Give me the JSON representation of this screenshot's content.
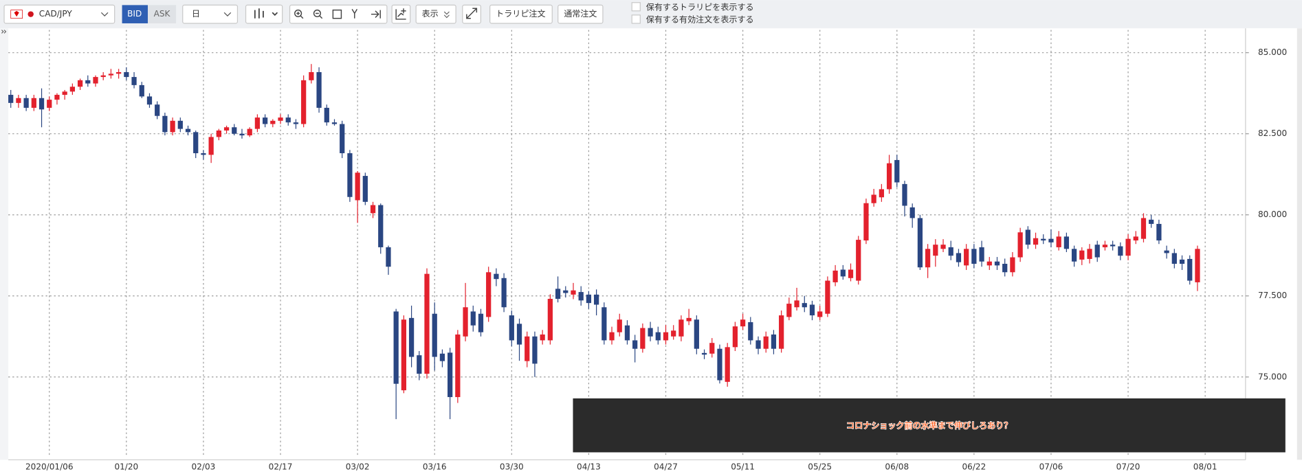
{
  "toolbar": {
    "symbol": "CAD/JPY",
    "bid": "BID",
    "ask": "ASK",
    "period": "日",
    "display": "表示",
    "trap_order": "トラリピ注文",
    "normal_order": "通常注文",
    "check1": "保有するトラリピを表示する",
    "check2": "保有する有効注文を表示する"
  },
  "chart_data": {
    "type": "candlestick",
    "annotation": "コロナショック前の水準まで伸びしろあり？",
    "categories": [
      null,
      null,
      null,
      null,
      null,
      "2020/01/06",
      null,
      null,
      null,
      null,
      null,
      null,
      null,
      null,
      null,
      "01/20",
      null,
      null,
      null,
      null,
      null,
      null,
      null,
      null,
      null,
      "02/03",
      null,
      null,
      null,
      null,
      null,
      null,
      null,
      null,
      null,
      "02/17",
      null,
      null,
      null,
      null,
      null,
      null,
      null,
      null,
      null,
      "03/02",
      null,
      null,
      null,
      null,
      null,
      null,
      null,
      null,
      null,
      "03/16",
      null,
      null,
      null,
      null,
      null,
      null,
      null,
      null,
      null,
      "03/30",
      null,
      null,
      null,
      null,
      null,
      null,
      null,
      null,
      null,
      "04/13",
      null,
      null,
      null,
      null,
      null,
      null,
      null,
      null,
      null,
      "04/27",
      null,
      null,
      null,
      null,
      null,
      null,
      null,
      null,
      null,
      "05/11",
      null,
      null,
      null,
      null,
      null,
      null,
      null,
      null,
      null,
      "05/25",
      null,
      null,
      null,
      null,
      null,
      null,
      null,
      null,
      null,
      "06/08",
      null,
      null,
      null,
      null,
      null,
      null,
      null,
      null,
      null,
      "06/22",
      null,
      null,
      null,
      null,
      null,
      null,
      null,
      null,
      null,
      "07/06",
      null,
      null,
      null,
      null,
      null,
      null,
      null,
      null,
      null,
      "07/20",
      null,
      null,
      null,
      null,
      null,
      null,
      null,
      null,
      null,
      "08/01"
    ],
    "open": [
      83.7,
      83.45,
      83.6,
      83.3,
      83.6,
      83.3,
      83.55,
      83.7,
      83.8,
      83.95,
      84.15,
      84.05,
      84.25,
      84.3,
      84.35,
      84.4,
      84.25,
      84.0,
      83.65,
      83.4,
      83.05,
      82.55,
      82.9,
      82.65,
      82.55,
      81.9,
      81.85,
      82.4,
      82.6,
      82.7,
      82.5,
      82.45,
      82.65,
      83.0,
      82.8,
      82.9,
      83.0,
      82.85,
      82.8,
      84.15,
      84.4,
      83.3,
      82.85,
      82.8,
      81.9,
      80.45,
      81.2,
      80.05,
      80.3,
      79.0,
      77.02,
      74.59,
      76.82,
      75.67,
      75.1,
      76.95,
      75.72,
      75.75,
      74.38,
      76.25,
      77.02,
      76.95,
      76.85,
      78.18,
      78.05,
      76.9,
      76.64,
      75.49,
      76.25,
      76.13,
      76.13,
      77.72,
      77.67,
      77.54,
      77.62,
      77.54,
      77.54,
      77.15,
      76.13,
      76.38,
      76.59,
      76.13,
      75.87,
      76.51,
      76.38,
      76.13,
      76.25,
      76.25,
      76.72,
      76.77,
      75.74,
      75.72,
      75.87,
      74.85,
      75.92,
      76.56,
      76.69,
      76.13,
      75.87,
      76.31,
      75.87,
      76.85,
      77.15,
      77.28,
      77.23,
      76.85,
      76.95,
      77.92,
      78.31,
      78.05,
      77.97,
      79.21,
      80.36,
      80.54,
      80.79,
      81.69,
      80.95,
      80.23,
      79.9,
      78.38,
      78.74,
      78.95,
      79.0,
      78.82,
      78.44,
      78.95,
      79.0,
      78.44,
      78.56,
      78.49,
      78.23,
      78.69,
      79.54,
      79.08,
      79.26,
      79.26,
      79.0,
      79.33,
      78.95,
      78.62,
      78.64,
      79.08,
      79.0,
      79.08,
      79.03,
      78.74,
      79.21,
      79.26,
      79.85,
      79.72,
      78.9,
      78.82,
      78.62,
      78.64,
      77.92,
      null
    ],
    "high": [
      83.85,
      83.7,
      83.7,
      83.7,
      83.9,
      83.65,
      83.75,
      83.85,
      84.05,
      84.2,
      84.3,
      84.3,
      84.4,
      84.5,
      84.5,
      84.55,
      84.4,
      84.1,
      83.75,
      83.5,
      83.15,
      83.0,
      83.0,
      82.75,
      82.6,
      82.0,
      82.5,
      82.65,
      82.75,
      82.8,
      82.65,
      82.7,
      83.1,
      83.1,
      82.95,
      83.1,
      83.1,
      82.95,
      84.3,
      84.65,
      84.55,
      83.4,
      82.95,
      82.9,
      82.0,
      81.35,
      81.3,
      80.4,
      80.35,
      79.05,
      77.1,
      76.9,
      77.2,
      75.8,
      78.35,
      77.3,
      75.85,
      75.9,
      76.45,
      77.9,
      77.2,
      77.1,
      78.4,
      78.35,
      78.2,
      77.05,
      76.8,
      76.4,
      76.4,
      76.45,
      77.55,
      78.1,
      77.8,
      77.9,
      77.8,
      77.65,
      77.7,
      77.3,
      76.55,
      76.95,
      76.75,
      76.3,
      76.65,
      76.7,
      76.55,
      76.6,
      76.6,
      76.9,
      77.1,
      76.9,
      75.85,
      76.2,
      76.0,
      76.05,
      76.7,
      76.95,
      76.85,
      76.25,
      76.4,
      76.45,
      77.05,
      77.45,
      77.75,
      77.5,
      77.35,
      77.2,
      78.1,
      78.45,
      78.45,
      78.5,
      79.35,
      80.5,
      80.8,
      80.95,
      81.85,
      81.85,
      81.05,
      80.35,
      80.0,
      79.1,
      79.25,
      79.25,
      79.2,
      78.95,
      79.1,
      79.1,
      79.2,
      78.7,
      78.7,
      78.65,
      78.85,
      79.6,
      79.65,
      79.45,
      79.4,
      79.55,
      79.5,
      79.45,
      79.05,
      79.0,
      79.1,
      79.2,
      79.2,
      79.2,
      79.15,
      79.4,
      79.5,
      80.05,
      80.0,
      79.85,
      79.05,
      78.95,
      78.75,
      78.75,
      79.05,
      null
    ],
    "low": [
      83.3,
      83.3,
      83.2,
      83.2,
      82.7,
      83.2,
      83.4,
      83.55,
      83.7,
      83.85,
      83.95,
      83.95,
      84.15,
      84.2,
      84.2,
      84.15,
      83.9,
      83.6,
      83.3,
      82.95,
      82.45,
      82.45,
      82.55,
      82.45,
      81.75,
      81.7,
      81.6,
      82.3,
      82.5,
      82.45,
      82.35,
      82.4,
      82.55,
      82.7,
      82.7,
      82.8,
      82.75,
      82.65,
      82.7,
      84.05,
      83.15,
      82.75,
      82.75,
      81.75,
      80.4,
      79.75,
      80.3,
      79.9,
      78.8,
      78.15,
      73.7,
      74.5,
      75.3,
      74.9,
      74.95,
      75.2,
      75.3,
      73.7,
      74.2,
      76.1,
      76.4,
      76.25,
      76.7,
      77.8,
      77.0,
      75.95,
      75.5,
      75.3,
      75.0,
      76.0,
      76.0,
      77.3,
      77.45,
      77.4,
      77.2,
      77.1,
      76.9,
      76.0,
      76.0,
      76.25,
      76.0,
      75.45,
      75.75,
      76.1,
      76.0,
      76.0,
      76.15,
      76.1,
      76.6,
      75.7,
      75.55,
      75.6,
      74.8,
      74.7,
      75.8,
      76.45,
      76.0,
      75.7,
      75.75,
      75.7,
      75.75,
      76.75,
      77.05,
      77.0,
      76.75,
      76.75,
      76.85,
      77.8,
      78.0,
      77.95,
      77.85,
      79.1,
      80.25,
      80.4,
      80.65,
      80.85,
      79.95,
      79.6,
      78.3,
      78.05,
      78.4,
      78.85,
      78.6,
      78.4,
      78.3,
      78.35,
      78.4,
      78.3,
      78.3,
      78.1,
      78.1,
      78.55,
      78.95,
      78.95,
      79.1,
      79.0,
      78.9,
      78.85,
      78.4,
      78.45,
      78.5,
      78.55,
      78.9,
      78.9,
      78.6,
      78.6,
      79.1,
      79.15,
      79.6,
      79.1,
      78.65,
      78.35,
      78.3,
      77.85,
      77.65,
      null
    ],
    "close": [
      83.45,
      83.6,
      83.3,
      83.6,
      83.25,
      83.55,
      83.7,
      83.8,
      83.95,
      84.15,
      84.05,
      84.25,
      84.3,
      84.35,
      84.4,
      84.25,
      84.0,
      83.65,
      83.4,
      83.05,
      82.55,
      82.9,
      82.65,
      82.55,
      81.9,
      81.85,
      82.4,
      82.6,
      82.7,
      82.5,
      82.45,
      82.65,
      83.0,
      82.8,
      82.9,
      83.0,
      82.85,
      82.8,
      84.15,
      84.4,
      83.3,
      82.85,
      82.8,
      81.9,
      80.55,
      81.3,
      80.4,
      80.3,
      79.0,
      78.4,
      74.79,
      76.77,
      75.62,
      75.1,
      78.18,
      75.62,
      75.49,
      74.38,
      76.31,
      77.15,
      76.59,
      76.38,
      78.23,
      78.02,
      77.15,
      76.13,
      76.0,
      76.25,
      75.41,
      76.31,
      77.41,
      77.41,
      77.59,
      77.67,
      77.36,
      77.28,
      77.23,
      76.13,
      76.38,
      76.77,
      76.13,
      75.87,
      76.51,
      76.25,
      76.13,
      76.38,
      76.43,
      76.77,
      76.82,
      75.87,
      75.69,
      76.05,
      74.9,
      75.92,
      76.56,
      76.77,
      76.13,
      75.87,
      76.25,
      75.87,
      76.9,
      77.26,
      77.36,
      77.15,
      76.9,
      77.02,
      77.97,
      78.28,
      78.1,
      78.31,
      79.23,
      80.36,
      80.62,
      80.79,
      81.59,
      81.0,
      80.28,
      79.9,
      78.38,
      78.95,
      79.08,
      79.08,
      78.74,
      78.54,
      78.95,
      78.49,
      78.56,
      78.56,
      78.44,
      78.23,
      78.69,
      79.46,
      79.08,
      79.28,
      79.21,
      79.15,
      79.33,
      78.95,
      78.56,
      78.9,
      78.95,
      78.69,
      79.08,
      79.03,
      78.74,
      79.26,
      79.33,
      79.9,
      79.72,
      79.21,
      78.82,
      78.49,
      78.49,
      77.97,
      78.95,
      null
    ],
    "up_color": "#e3212d",
    "down_color": "#2a4682",
    "ylim": [
      72.6,
      85.7
    ],
    "yticks": [
      {
        "value": 75,
        "label": "75.000"
      },
      {
        "value": 77.5,
        "label": "77.500"
      },
      {
        "value": 80,
        "label": "80.000"
      },
      {
        "value": 82.5,
        "label": "82.500"
      },
      {
        "value": 85,
        "label": "85.000"
      }
    ],
    "grid": true
  }
}
